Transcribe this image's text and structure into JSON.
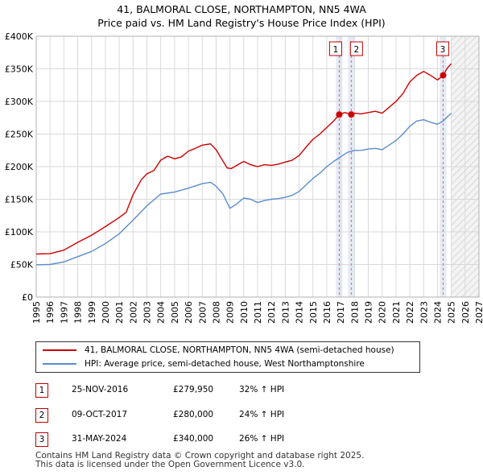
{
  "title_line1": "41, BALMORAL CLOSE, NORTHAMPTON, NN5 4WA",
  "title_line2": "Price paid vs. HM Land Registry's House Price Index (HPI)",
  "chart_data": {
    "type": "line",
    "ylim": [
      0,
      400000
    ],
    "xlim": [
      1995,
      2027
    ],
    "y_ticks": [
      {
        "value": 0,
        "label": "£0"
      },
      {
        "value": 50000,
        "label": "£50K"
      },
      {
        "value": 100000,
        "label": "£100K"
      },
      {
        "value": 150000,
        "label": "£150K"
      },
      {
        "value": 200000,
        "label": "£200K"
      },
      {
        "value": 250000,
        "label": "£250K"
      },
      {
        "value": 300000,
        "label": "£300K"
      },
      {
        "value": 350000,
        "label": "£350K"
      },
      {
        "value": 400000,
        "label": "£400K"
      }
    ],
    "x_ticks": [
      "1995",
      "1996",
      "1997",
      "1998",
      "1999",
      "2000",
      "2001",
      "2002",
      "2003",
      "2004",
      "2005",
      "2006",
      "2007",
      "2008",
      "2009",
      "2010",
      "2011",
      "2012",
      "2013",
      "2014",
      "2015",
      "2016",
      "2017",
      "2018",
      "2019",
      "2020",
      "2021",
      "2022",
      "2023",
      "2024",
      "2025",
      "2026",
      "2027"
    ],
    "future_start": 2025.0,
    "series": [
      {
        "name": "41, BALMORAL CLOSE, NORTHAMPTON, NN5 4WA (semi-detached house)",
        "color": "#cc0000",
        "points": [
          [
            1995,
            66000
          ],
          [
            1996,
            66500
          ],
          [
            1997,
            72000
          ],
          [
            1998,
            84000
          ],
          [
            1999,
            95000
          ],
          [
            2000,
            108000
          ],
          [
            2001,
            122000
          ],
          [
            2001.5,
            130000
          ],
          [
            2002,
            157000
          ],
          [
            2002.6,
            180000
          ],
          [
            2003,
            189000
          ],
          [
            2003.5,
            194000
          ],
          [
            2004,
            210000
          ],
          [
            2004.5,
            216000
          ],
          [
            2005,
            212000
          ],
          [
            2005.5,
            215000
          ],
          [
            2006,
            224000
          ],
          [
            2006.5,
            228000
          ],
          [
            2007,
            233000
          ],
          [
            2007.6,
            235000
          ],
          [
            2008,
            226000
          ],
          [
            2008.4,
            212000
          ],
          [
            2008.8,
            198000
          ],
          [
            2009.1,
            197000
          ],
          [
            2009.5,
            202000
          ],
          [
            2010,
            208000
          ],
          [
            2010.5,
            203000
          ],
          [
            2011,
            200000
          ],
          [
            2011.5,
            203000
          ],
          [
            2012,
            202000
          ],
          [
            2012.5,
            204000
          ],
          [
            2013,
            207000
          ],
          [
            2013.5,
            210000
          ],
          [
            2014,
            217000
          ],
          [
            2014.5,
            230000
          ],
          [
            2015,
            242000
          ],
          [
            2015.5,
            250000
          ],
          [
            2016,
            260000
          ],
          [
            2016.5,
            270000
          ],
          [
            2016.9,
            279950
          ],
          [
            2017.3,
            283000
          ],
          [
            2017.77,
            280000
          ],
          [
            2018,
            282000
          ],
          [
            2018.5,
            281000
          ],
          [
            2019,
            283000
          ],
          [
            2019.5,
            285000
          ],
          [
            2020,
            282000
          ],
          [
            2020.5,
            291000
          ],
          [
            2021,
            300000
          ],
          [
            2021.5,
            312000
          ],
          [
            2022,
            330000
          ],
          [
            2022.5,
            340000
          ],
          [
            2023,
            346000
          ],
          [
            2023.5,
            340000
          ],
          [
            2024,
            333000
          ],
          [
            2024.41,
            340000
          ],
          [
            2024.7,
            351000
          ],
          [
            2025,
            358000
          ]
        ]
      },
      {
        "name": "HPI: Average price, semi-detached house, West Northamptonshire",
        "color": "#5b8ccc",
        "points": [
          [
            1995,
            49500
          ],
          [
            1996,
            50000
          ],
          [
            1997,
            54000
          ],
          [
            1998,
            62000
          ],
          [
            1999,
            70000
          ],
          [
            2000,
            82000
          ],
          [
            2001,
            97000
          ],
          [
            2002,
            118000
          ],
          [
            2003,
            140000
          ],
          [
            2004,
            158000
          ],
          [
            2005,
            161000
          ],
          [
            2006,
            167000
          ],
          [
            2007,
            174000
          ],
          [
            2007.6,
            176000
          ],
          [
            2008,
            170000
          ],
          [
            2008.5,
            158000
          ],
          [
            2009,
            136000
          ],
          [
            2009.5,
            143000
          ],
          [
            2010,
            152000
          ],
          [
            2010.5,
            150000
          ],
          [
            2011,
            145000
          ],
          [
            2011.5,
            148000
          ],
          [
            2012,
            150000
          ],
          [
            2012.5,
            151000
          ],
          [
            2013,
            153000
          ],
          [
            2013.5,
            156000
          ],
          [
            2014,
            162000
          ],
          [
            2014.5,
            172000
          ],
          [
            2015,
            182000
          ],
          [
            2015.5,
            190000
          ],
          [
            2016,
            200000
          ],
          [
            2016.5,
            208000
          ],
          [
            2017,
            215000
          ],
          [
            2017.5,
            222000
          ],
          [
            2018,
            225000
          ],
          [
            2018.5,
            225000
          ],
          [
            2019,
            227000
          ],
          [
            2019.5,
            228000
          ],
          [
            2020,
            226000
          ],
          [
            2020.5,
            233000
          ],
          [
            2021,
            240000
          ],
          [
            2021.5,
            250000
          ],
          [
            2022,
            262000
          ],
          [
            2022.5,
            270000
          ],
          [
            2023,
            272000
          ],
          [
            2023.5,
            268000
          ],
          [
            2024,
            265000
          ],
          [
            2024.41,
            270000
          ],
          [
            2024.7,
            276000
          ],
          [
            2025,
            282000
          ]
        ]
      }
    ],
    "sales": [
      {
        "label": "1",
        "x": 2016.9,
        "price": 279950
      },
      {
        "label": "2",
        "x": 2017.77,
        "price": 280000
      },
      {
        "label": "3",
        "x": 2024.41,
        "price": 340000
      }
    ]
  },
  "legend": {
    "property": "41, BALMORAL CLOSE, NORTHAMPTON, NN5 4WA (semi-detached house)",
    "hpi": "HPI: Average price, semi-detached house, West Northamptonshire"
  },
  "transactions": [
    {
      "num": "1",
      "date": "25-NOV-2016",
      "price": "£279,950",
      "hpi": "32% ↑ HPI"
    },
    {
      "num": "2",
      "date": "09-OCT-2017",
      "price": "£280,000",
      "hpi": "24% ↑ HPI"
    },
    {
      "num": "3",
      "date": "31-MAY-2024",
      "price": "£340,000",
      "hpi": "26% ↑ HPI"
    }
  ],
  "footer_line1": "Contains HM Land Registry data © Crown copyright and database right 2025.",
  "footer_line2": "This data is licensed under the Open Government Licence v3.0."
}
